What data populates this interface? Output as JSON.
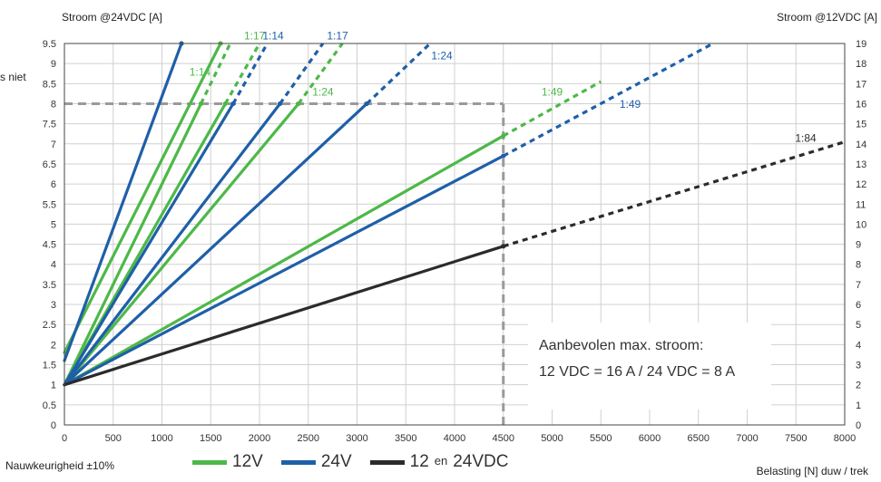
{
  "texts": {
    "y_left_title": "Stroom @24VDC [A]",
    "y_right_title": "Stroom @12VDC [A]",
    "x_title": "Belasting [N] duw / trek",
    "accuracy_note": "Nauwkeurigheid ±10%",
    "overflow_text": "s niet",
    "annotation_line1": "Aanbevolen max. stroom:",
    "annotation_line2": "12 VDC = 16 A / 24 VDC = 8 A",
    "legend_12v": "12V",
    "legend_24v": "24V",
    "legend_both_a": "12",
    "legend_both_conj": "en",
    "legend_both_b": "24VDC"
  },
  "colors": {
    "green": "#4db848",
    "blue": "#1f5fa8",
    "black": "#2b2b2b",
    "guide": "#9a9a9a",
    "grid": "#d0d0d0"
  },
  "chart_data": {
    "type": "line",
    "xlabel": "Belasting [N] duw / trek",
    "ylabel_left": "Stroom @24VDC [A]",
    "ylabel_right": "Stroom @12VDC [A]",
    "x_range": [
      0,
      8000
    ],
    "x_ticks": [
      0,
      500,
      1000,
      1500,
      2000,
      2500,
      3000,
      3500,
      4000,
      4500,
      5000,
      5500,
      6000,
      6500,
      7000,
      7500,
      8000
    ],
    "y_left_range": [
      0,
      9.5
    ],
    "y_left_ticks": [
      "0",
      "0.5",
      "1",
      "1.5",
      "2",
      "2.5",
      "3",
      "3.5",
      "4",
      "4.5",
      "5",
      "5.5",
      "6",
      "6.5",
      "7",
      "7.5",
      "8",
      "8.5",
      "9",
      "9.5"
    ],
    "y_right_range": [
      0,
      19
    ],
    "y_right_ticks": [
      "0",
      "1",
      "2",
      "3",
      "4",
      "5",
      "6",
      "7",
      "8",
      "9",
      "10",
      "11",
      "12",
      "13",
      "14",
      "15",
      "16",
      "17",
      "18",
      "19"
    ],
    "grid": true,
    "units": "y in 24VDC amperes (left axis); 12VDC series read on right axis = 2x",
    "series": [
      {
        "name": "1:14",
        "group": "12V",
        "color": "green",
        "solid": [
          [
            0,
            1.0
          ],
          [
            1400,
            8.0
          ]
        ],
        "dashed": [
          [
            1400,
            8.0
          ],
          [
            1700,
            9.5
          ]
        ],
        "label_at": [
          1390,
          8.7
        ]
      },
      {
        "name": "1:17",
        "group": "12V",
        "color": "green",
        "solid": [
          [
            0,
            1.0
          ],
          [
            1650,
            8.0
          ]
        ],
        "dashed": [
          [
            1650,
            8.0
          ],
          [
            2000,
            9.5
          ]
        ],
        "label_at": [
          1950,
          9.6
        ]
      },
      {
        "name": "1:24",
        "group": "12V",
        "color": "green",
        "solid": [
          [
            0,
            1.0
          ],
          [
            2400,
            8.0
          ]
        ],
        "dashed": [
          [
            2400,
            8.0
          ],
          [
            2850,
            9.5
          ]
        ],
        "label_at": [
          2650,
          8.2
        ]
      },
      {
        "name": "1:49",
        "group": "12V",
        "color": "green",
        "solid": [
          [
            0,
            1.0
          ],
          [
            4500,
            7.2
          ]
        ],
        "dashed": [
          [
            4500,
            7.2
          ],
          [
            5500,
            8.55
          ]
        ],
        "label_at": [
          5000,
          8.2
        ]
      },
      {
        "name": "",
        "group": "12V",
        "color": "green",
        "solid": [
          [
            0,
            1.8
          ],
          [
            1600,
            9.5
          ]
        ],
        "dashed": []
      },
      {
        "name": "1:14",
        "group": "24V",
        "color": "blue",
        "solid": [
          [
            0,
            1.0
          ],
          [
            1730,
            8.0
          ]
        ],
        "dashed": [
          [
            1730,
            8.0
          ],
          [
            2080,
            9.5
          ]
        ],
        "label_at": [
          2140,
          9.6
        ]
      },
      {
        "name": "1:17",
        "group": "24V",
        "color": "blue",
        "solid": [
          [
            0,
            1.0
          ],
          [
            2210,
            8.0
          ]
        ],
        "dashed": [
          [
            2210,
            8.0
          ],
          [
            2650,
            9.5
          ]
        ],
        "label_at": [
          2800,
          9.6
        ]
      },
      {
        "name": "1:24",
        "group": "24V",
        "color": "blue",
        "solid": [
          [
            0,
            1.0
          ],
          [
            3100,
            8.0
          ]
        ],
        "dashed": [
          [
            3100,
            8.0
          ],
          [
            3750,
            9.5
          ]
        ],
        "label_at": [
          3870,
          9.1
        ]
      },
      {
        "name": "1:49",
        "group": "24V",
        "color": "blue",
        "solid": [
          [
            0,
            1.0
          ],
          [
            4500,
            6.7
          ]
        ],
        "dashed": [
          [
            4500,
            6.7
          ],
          [
            6650,
            9.5
          ]
        ],
        "label_at": [
          5800,
          7.9
        ]
      },
      {
        "name": "",
        "group": "24V",
        "color": "blue",
        "solid": [
          [
            0,
            1.6
          ],
          [
            1200,
            9.5
          ]
        ],
        "dashed": []
      },
      {
        "name": "1:84",
        "group": "12 en 24VDC",
        "color": "black",
        "solid": [
          [
            0,
            1.0
          ],
          [
            4500,
            4.45
          ]
        ],
        "dashed": [
          [
            4500,
            4.45
          ],
          [
            8000,
            7.05
          ]
        ],
        "label_at": [
          7600,
          7.05
        ]
      }
    ],
    "reference_lines": [
      {
        "type": "horizontal",
        "y": 8.0,
        "x_from": 0,
        "x_to": 4500
      },
      {
        "type": "vertical",
        "x": 4500,
        "y_from": 0,
        "y_to": 8.0
      }
    ]
  }
}
